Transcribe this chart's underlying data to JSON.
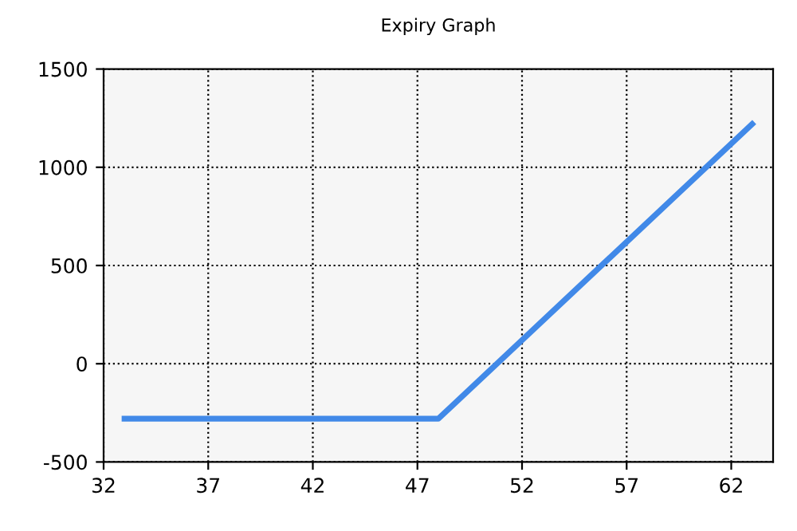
{
  "chart_data": {
    "type": "line",
    "title": "Expiry Graph",
    "x": [
      33,
      48,
      63
    ],
    "series": [
      {
        "color": "#4189e8",
        "values": [
          -280,
          -280,
          1220
        ]
      }
    ],
    "xlim": [
      32,
      64
    ],
    "xticks": [
      32,
      37,
      42,
      47,
      52,
      57,
      62
    ],
    "ylim": [
      -500,
      1500
    ],
    "yticks": [
      -500,
      0,
      500,
      1000,
      1500
    ],
    "grid": true,
    "line_style": "solid",
    "marker": "none"
  }
}
